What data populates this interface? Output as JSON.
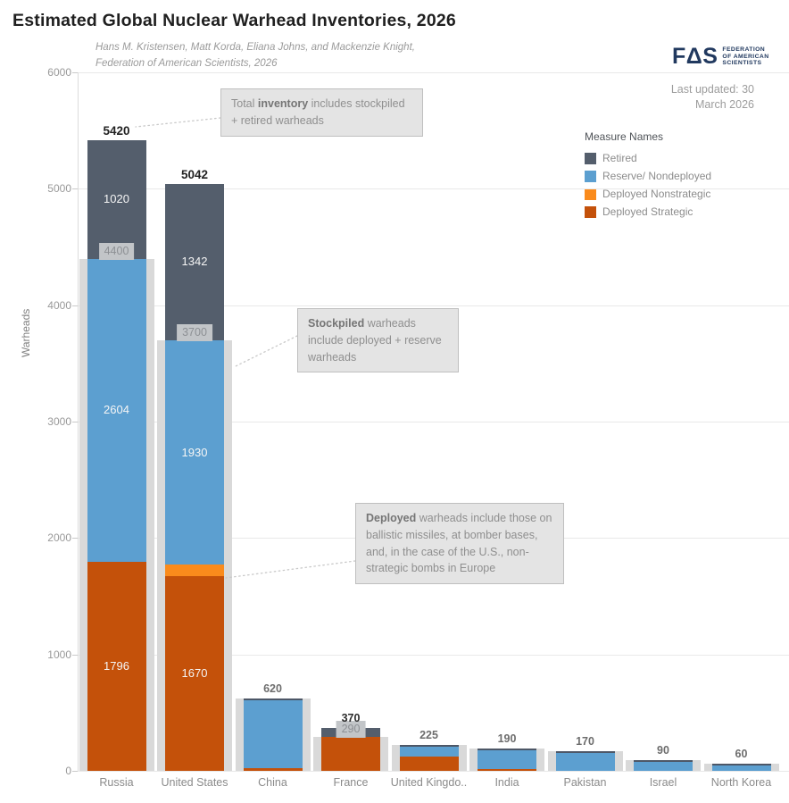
{
  "header": {
    "title": "Estimated Global Nuclear Warhead Inventories, 2026",
    "subtitle_line1": "Hans M. Kristensen, Matt Korda, Eliana Johns, and Mackenzie Knight,",
    "subtitle_line2": "Federation of American Scientists, 2026",
    "last_updated_line1": "Last updated: 30",
    "last_updated_line2": "March 2026",
    "logo": {
      "glyph": "FΔS",
      "text_line1": "FEDERATION",
      "text_line2": "OF AMERICAN",
      "text_line3": "SCIENTISTS",
      "color": "#21395f"
    }
  },
  "legend": {
    "title": "Measure Names",
    "items": [
      {
        "label": "Retired",
        "color": "#545e6c"
      },
      {
        "label": "Reserve/ Nondeployed",
        "color": "#5c9fd0"
      },
      {
        "label": "Deployed Nonstrategic",
        "color": "#fa8b1c"
      },
      {
        "label": "Deployed Strategic",
        "color": "#c4510a"
      }
    ]
  },
  "chart_data": {
    "type": "bar",
    "stacked": true,
    "title": "Estimated Global Nuclear Warhead Inventories, 2026",
    "xlabel": "",
    "ylabel": "Warheads",
    "ylim": [
      0,
      6000
    ],
    "yticks": [
      0,
      1000,
      2000,
      3000,
      4000,
      5000,
      6000
    ],
    "grid": true,
    "legend_position": "right",
    "categories": [
      "Russia",
      "United States",
      "China",
      "France",
      "United Kingdo..",
      "India",
      "Pakistan",
      "Israel",
      "North Korea"
    ],
    "series": [
      {
        "key": "deployed_strategic",
        "name": "Deployed Strategic",
        "color": "#c4510a",
        "values": [
          1796,
          1670,
          24,
          290,
          120,
          12,
          0,
          0,
          0
        ]
      },
      {
        "key": "deployed_nonstrategic",
        "name": "Deployed Nonstrategic",
        "color": "#fa8b1c",
        "values": [
          0,
          100,
          0,
          0,
          0,
          0,
          0,
          0,
          0
        ]
      },
      {
        "key": "reserve",
        "name": "Reserve/ Nondeployed",
        "color": "#5c9fd0",
        "values": [
          2604,
          1930,
          596,
          0,
          105,
          178,
          170,
          90,
          60
        ]
      },
      {
        "key": "retired",
        "name": "Retired",
        "color": "#545e6c",
        "values": [
          1020,
          1342,
          0,
          80,
          0,
          0,
          0,
          0,
          0
        ]
      }
    ],
    "totals": [
      5420,
      5042,
      620,
      370,
      225,
      190,
      170,
      90,
      60
    ],
    "total_labels": [
      "5420",
      "5042",
      "620",
      "370",
      "225",
      "190",
      "170",
      "90",
      "60"
    ],
    "total_label_dark": [
      true,
      true,
      false,
      true,
      false,
      false,
      false,
      false,
      false
    ],
    "total_label_large": [
      true,
      true,
      false,
      false,
      false,
      false,
      false,
      false,
      false
    ],
    "stockpiles": [
      4400,
      3700,
      620,
      290,
      225,
      190,
      170,
      90,
      60
    ],
    "stockpile_chips": [
      "4400",
      "3700",
      null,
      "290",
      null,
      null,
      null,
      null,
      null
    ],
    "segment_value_labels": [
      {
        "deployed_strategic": "1796",
        "reserve": "2604",
        "retired": "1020"
      },
      {
        "deployed_strategic": "1670",
        "reserve": "1930",
        "retired": "1342"
      },
      {},
      {},
      {},
      {},
      {},
      {},
      {}
    ],
    "topline": [
      false,
      false,
      true,
      false,
      true,
      true,
      true,
      true,
      true
    ],
    "colors": {
      "stockpile_background": "#d9d9d9",
      "topline": "#4d5767",
      "grid": "#e9e9e9",
      "chip_bg": "#c2c5c8",
      "chip_text": "#8d9094"
    }
  },
  "annotations": [
    {
      "parts": [
        {
          "t": "Total ",
          "b": false
        },
        {
          "t": "inventory",
          "b": true
        },
        {
          "t": " includes stockpiled + retired warheads",
          "b": false
        }
      ]
    },
    {
      "parts": [
        {
          "t": "Stockpiled",
          "b": true
        },
        {
          "t": " warheads include deployed + reserve warheads",
          "b": false
        }
      ]
    },
    {
      "parts": [
        {
          "t": "Deployed",
          "b": true
        },
        {
          "t": " warheads include those on ballistic missiles, at bomber bases, and, in the case of the U.S., non-strategic bombs in Europe",
          "b": false
        }
      ]
    }
  ]
}
